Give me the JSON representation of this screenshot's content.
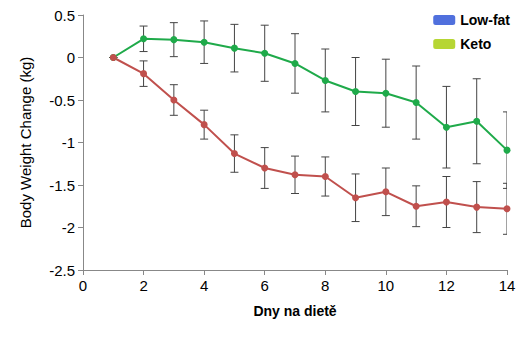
{
  "chart_data": {
    "type": "line",
    "x_label": "Dny na dietě",
    "y_label": "Body Weight Change (kg)",
    "x": [
      1,
      2,
      3,
      4,
      5,
      6,
      7,
      8,
      9,
      10,
      11,
      12,
      13,
      14
    ],
    "series": [
      {
        "name": "Low-fat",
        "color": "#1faa4a",
        "marker": "circle",
        "values": [
          0,
          0.22,
          0.21,
          0.18,
          0.11,
          0.05,
          -0.07,
          -0.27,
          -0.4,
          -0.42,
          -0.53,
          -0.82,
          -0.75,
          -1.09
        ],
        "errors": [
          0,
          0.15,
          0.2,
          0.25,
          0.28,
          0.33,
          0.35,
          0.37,
          0.4,
          0.4,
          0.43,
          0.48,
          0.5,
          0.45
        ]
      },
      {
        "name": "Keto",
        "color": "#c0504d",
        "marker": "circle",
        "values": [
          0,
          -0.19,
          -0.5,
          -0.79,
          -1.13,
          -1.3,
          -1.38,
          -1.4,
          -1.65,
          -1.58,
          -1.75,
          -1.7,
          -1.76,
          -1.78
        ],
        "errors": [
          0,
          0.15,
          0.18,
          0.17,
          0.22,
          0.24,
          0.22,
          0.23,
          0.28,
          0.28,
          0.24,
          0.3,
          0.3,
          0.3
        ]
      }
    ],
    "xlim": [
      0,
      14
    ],
    "xticks": [
      0,
      2,
      4,
      6,
      8,
      10,
      12,
      14
    ],
    "ylim": [
      -2.5,
      0.5
    ],
    "yticks": [
      -2.5,
      -2,
      -1.5,
      -1,
      -0.5,
      0,
      0.5
    ],
    "grid": false,
    "legend": "upper right"
  }
}
